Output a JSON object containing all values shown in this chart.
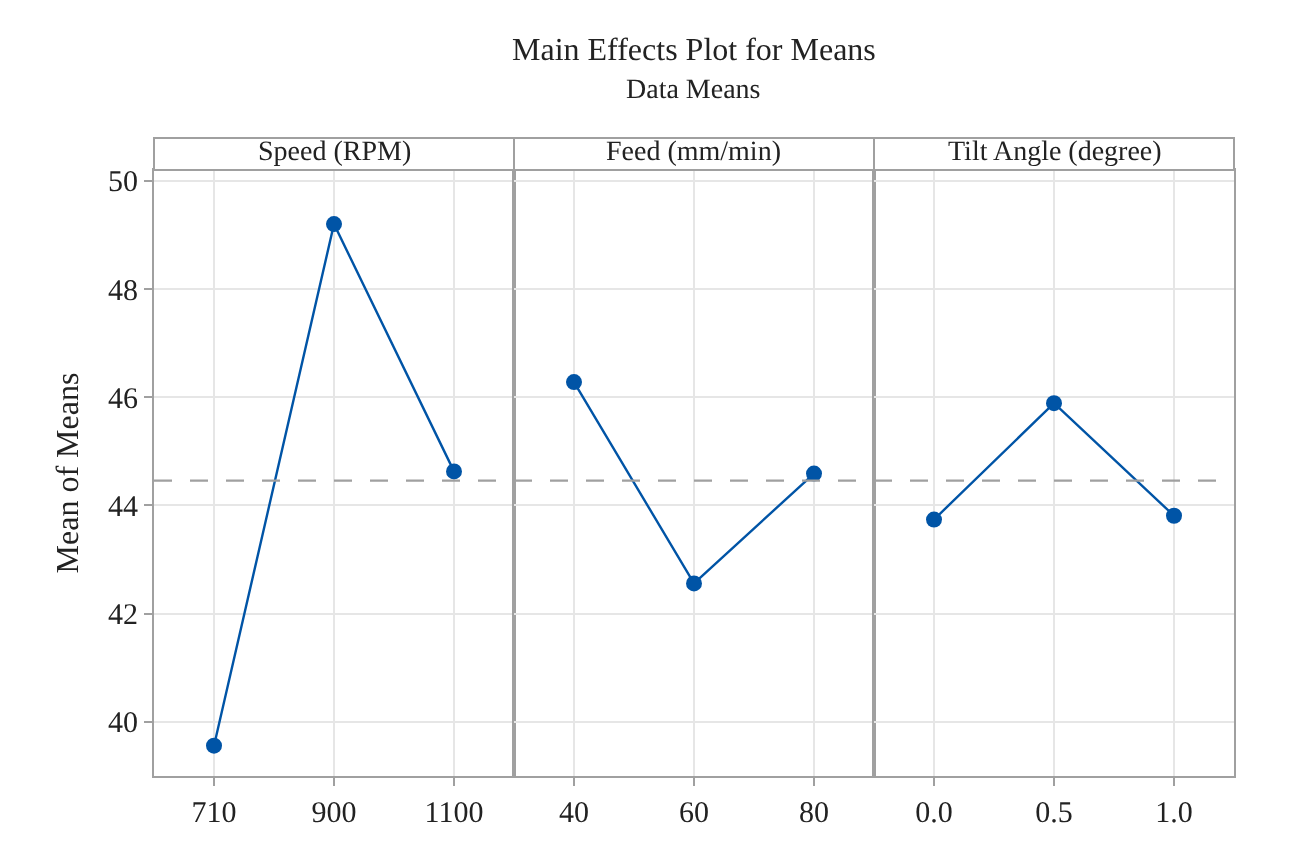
{
  "chart_data": [
    {
      "type": "line",
      "title": "Speed (RPM)",
      "ylabel": "Mean of Means",
      "annotations": [
        "Main Effects Plot for Means",
        "Data Means"
      ],
      "categories": [
        "710",
        "900",
        "1100"
      ],
      "series": [
        {
          "color": "#0054a6",
          "values": [
            39.56,
            49.2,
            44.63
          ]
        }
      ],
      "ylim": [
        39.0,
        50.2
      ],
      "yticks": [
        40,
        42,
        44,
        46,
        48,
        50
      ],
      "grid": true,
      "marker": "circle",
      "line_style": "solid",
      "ref_lines": [
        {
          "axis": "y",
          "value": 44.46,
          "color": "#a0a0a0",
          "line_style": "dashed"
        }
      ]
    },
    {
      "type": "line",
      "title": "Feed (mm/min)",
      "categories": [
        "40",
        "60",
        "80"
      ],
      "series": [
        {
          "color": "#0054a6",
          "values": [
            46.28,
            42.56,
            44.59
          ]
        }
      ],
      "ylim": [
        39.0,
        50.2
      ],
      "yticks": [
        40,
        42,
        44,
        46,
        48,
        50
      ],
      "tick_labels": "x",
      "grid": true,
      "marker": "circle",
      "line_style": "solid",
      "ref_lines": [
        {
          "axis": "y",
          "value": 44.46,
          "color": "#a0a0a0",
          "line_style": "dashed"
        }
      ]
    },
    {
      "type": "line",
      "title": "Tilt Angle (degree)",
      "categories": [
        "0.0",
        "0.5",
        "1.0"
      ],
      "series": [
        {
          "color": "#0054a6",
          "values": [
            43.74,
            45.89,
            43.81
          ]
        }
      ],
      "ylim": [
        39.0,
        50.2
      ],
      "yticks": [
        40,
        42,
        44,
        46,
        48,
        50
      ],
      "tick_labels": "x",
      "grid": true,
      "marker": "circle",
      "line_style": "solid",
      "ref_lines": [
        {
          "axis": "y",
          "value": 44.46,
          "color": "#a0a0a0",
          "line_style": "dashed"
        }
      ]
    }
  ]
}
